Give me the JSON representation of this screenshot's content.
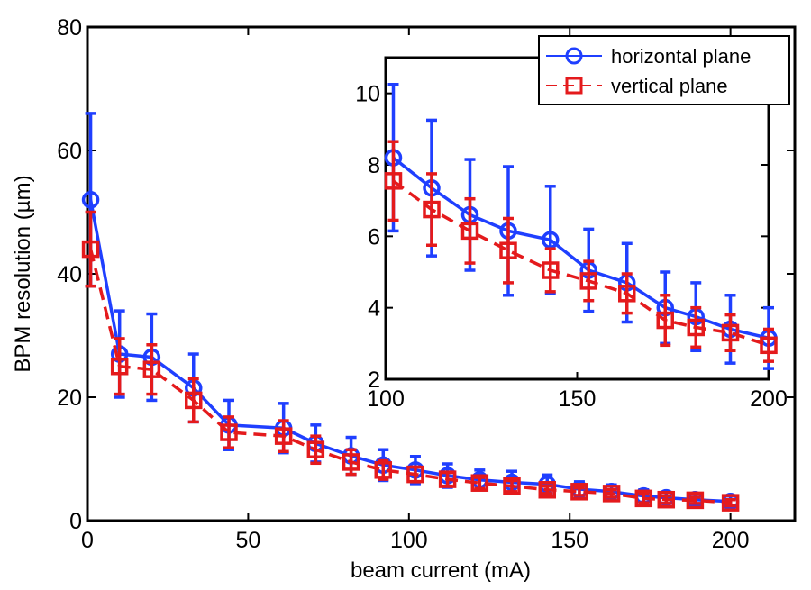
{
  "chart_data": [
    {
      "type": "line",
      "name": "main",
      "xlabel": "beam current (mA)",
      "ylabel": "BPM resolution (µm)",
      "xlim": [
        0,
        220
      ],
      "ylim": [
        0,
        80
      ],
      "xticks": [
        0,
        50,
        100,
        150,
        200
      ],
      "yticks": [
        0,
        20,
        40,
        60,
        80
      ],
      "series": [
        {
          "name": "horizontal plane",
          "color": "#1f3fff",
          "marker": "circle",
          "line": "solid",
          "x": [
            1,
            10,
            20,
            33,
            44,
            61,
            71,
            82,
            92,
            102,
            112,
            122,
            132,
            143,
            153,
            163,
            173,
            180,
            189,
            200
          ],
          "y": [
            52,
            27,
            26.5,
            21.5,
            15.5,
            15,
            12.5,
            10.5,
            9,
            8.2,
            7.3,
            6.6,
            6.2,
            5.9,
            5.1,
            4.7,
            4.0,
            3.7,
            3.4,
            3.1
          ],
          "err": [
            14,
            7,
            7,
            5.5,
            4,
            4,
            3,
            3,
            2.5,
            2.2,
            1.9,
            1.6,
            1.8,
            1.5,
            1.2,
            1.1,
            1.0,
            0.9,
            0.9,
            0.9
          ]
        },
        {
          "name": "vertical plane",
          "color": "#e41a1c",
          "marker": "square",
          "line": "dashed",
          "x": [
            1,
            10,
            20,
            33,
            44,
            61,
            71,
            82,
            92,
            102,
            112,
            122,
            132,
            143,
            153,
            163,
            173,
            180,
            189,
            200
          ],
          "y": [
            44,
            25,
            24.5,
            19.5,
            14.3,
            13.7,
            11.5,
            9.5,
            8.2,
            7.5,
            6.7,
            6.1,
            5.6,
            5.0,
            4.7,
            4.4,
            3.6,
            3.4,
            3.3,
            2.9
          ],
          "err": [
            6,
            4.5,
            4,
            3.5,
            2.5,
            2.5,
            2.2,
            2,
            1.5,
            1.2,
            1.1,
            0.9,
            0.9,
            0.6,
            0.6,
            0.6,
            0.7,
            0.6,
            0.5,
            0.5
          ]
        }
      ]
    },
    {
      "type": "line",
      "name": "inset",
      "xlim": [
        100,
        200
      ],
      "ylim": [
        2,
        11
      ],
      "xticks": [
        100,
        150,
        200
      ],
      "yticks": [
        2,
        4,
        6,
        8,
        10
      ],
      "series": [
        {
          "name": "horizontal plane",
          "color": "#1f3fff",
          "marker": "circle",
          "line": "solid",
          "x": [
            102,
            112,
            122,
            132,
            143,
            153,
            163,
            173,
            181,
            190,
            200
          ],
          "y": [
            8.2,
            7.35,
            6.6,
            6.15,
            5.9,
            5.05,
            4.7,
            4.0,
            3.75,
            3.4,
            3.15
          ],
          "err": [
            2.05,
            1.9,
            1.55,
            1.8,
            1.5,
            1.15,
            1.1,
            1.0,
            0.95,
            0.95,
            0.85
          ]
        },
        {
          "name": "vertical plane",
          "color": "#e41a1c",
          "marker": "square",
          "line": "dashed",
          "x": [
            102,
            112,
            122,
            132,
            143,
            153,
            163,
            173,
            181,
            190,
            200
          ],
          "y": [
            7.55,
            6.75,
            6.15,
            5.6,
            5.05,
            4.75,
            4.4,
            3.65,
            3.45,
            3.3,
            2.95
          ],
          "err": [
            1.1,
            1.0,
            0.9,
            0.9,
            0.6,
            0.55,
            0.55,
            0.7,
            0.55,
            0.5,
            0.45
          ]
        }
      ]
    }
  ]
}
